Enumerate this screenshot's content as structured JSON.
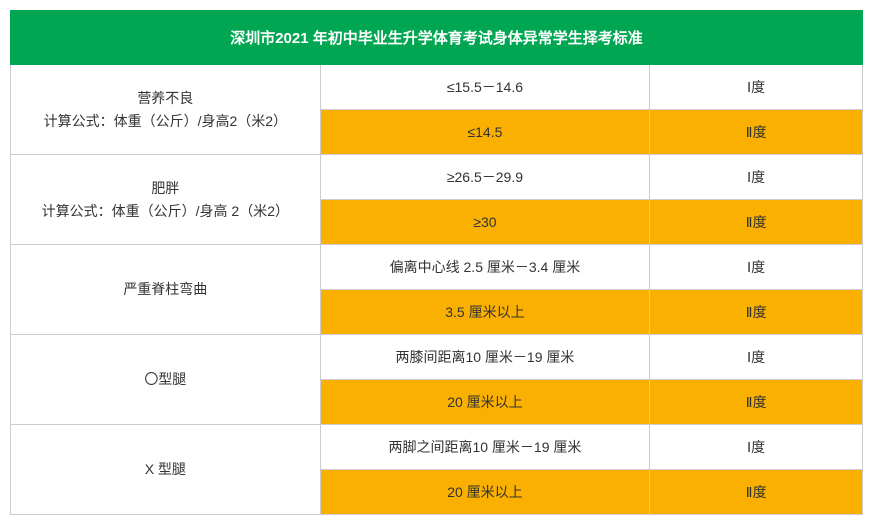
{
  "table": {
    "title": "深圳市2021 年初中毕业生升学体育考试身体异常学生择考标准",
    "colors": {
      "header_bg": "#00a651",
      "header_text": "#ffffff",
      "highlight_bg": "#f9b000",
      "border": "#cccccc",
      "text": "#333333"
    },
    "column_widths": [
      "310px",
      "330px",
      "213px"
    ],
    "rows": [
      {
        "category": "营养不良\n计算公式：体重（公斤）/身高2（米2）",
        "criteria": [
          {
            "range": "≤15.5－14.6",
            "degree": "Ⅰ度",
            "highlight": false
          },
          {
            "range": "≤14.5",
            "degree": "Ⅱ度",
            "highlight": true
          }
        ]
      },
      {
        "category": "肥胖\n计算公式：体重（公斤）/身高 2（米2）",
        "criteria": [
          {
            "range": "≥26.5－29.9",
            "degree": "Ⅰ度",
            "highlight": false
          },
          {
            "range": "≥30",
            "degree": "Ⅱ度",
            "highlight": true
          }
        ]
      },
      {
        "category": "严重脊柱弯曲",
        "criteria": [
          {
            "range": "偏离中心线 2.5 厘米－3.4 厘米",
            "degree": "Ⅰ度",
            "highlight": false
          },
          {
            "range": "3.5 厘米以上",
            "degree": "Ⅱ度",
            "highlight": true
          }
        ]
      },
      {
        "category": "〇型腿",
        "criteria": [
          {
            "range": "两膝间距离10 厘米－19 厘米",
            "degree": "Ⅰ度",
            "highlight": false
          },
          {
            "range": "20 厘米以上",
            "degree": "Ⅱ度",
            "highlight": true
          }
        ]
      },
      {
        "category": "X 型腿",
        "criteria": [
          {
            "range": "两脚之间距离10 厘米－19 厘米",
            "degree": "Ⅰ度",
            "highlight": false
          },
          {
            "range": "20 厘米以上",
            "degree": "Ⅱ度",
            "highlight": true
          }
        ]
      }
    ]
  }
}
